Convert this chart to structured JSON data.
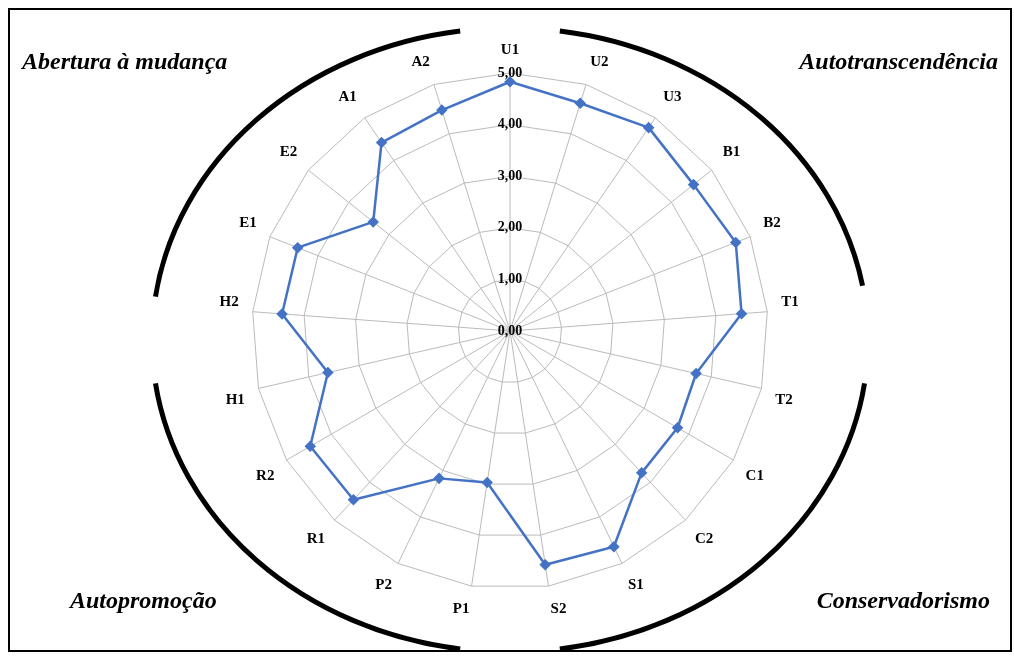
{
  "chart_data": {
    "type": "radar",
    "categories": [
      "U1",
      "U2",
      "U3",
      "B1",
      "B2",
      "T1",
      "T2",
      "C1",
      "C2",
      "S1",
      "S2",
      "P1",
      "P2",
      "R1",
      "R2",
      "H1",
      "H2",
      "E1",
      "E2",
      "A1",
      "A2"
    ],
    "series": [
      {
        "color": "#4472c4",
        "values": [
          4.83,
          4.62,
          4.77,
          4.55,
          4.7,
          4.5,
          3.7,
          3.75,
          3.75,
          4.64,
          4.58,
          2.97,
          3.17,
          4.46,
          4.47,
          3.62,
          4.43,
          4.42,
          3.39,
          4.42,
          4.48
        ]
      }
    ],
    "ylim": [
      0,
      5
    ],
    "yticks": [
      {
        "value": 0,
        "label": "0,00"
      },
      {
        "value": 1,
        "label": "1,00"
      },
      {
        "value": 2,
        "label": "2,00"
      },
      {
        "value": 3,
        "label": "3,00"
      },
      {
        "value": 4,
        "label": "4,00"
      },
      {
        "value": 5,
        "label": "5,00"
      }
    ],
    "grid": true,
    "marker": "diamond",
    "legend": false,
    "annotations": [
      "Abertura à mudança",
      "Autotranscendência",
      "Autopromoção",
      "Conservadorismo"
    ]
  }
}
